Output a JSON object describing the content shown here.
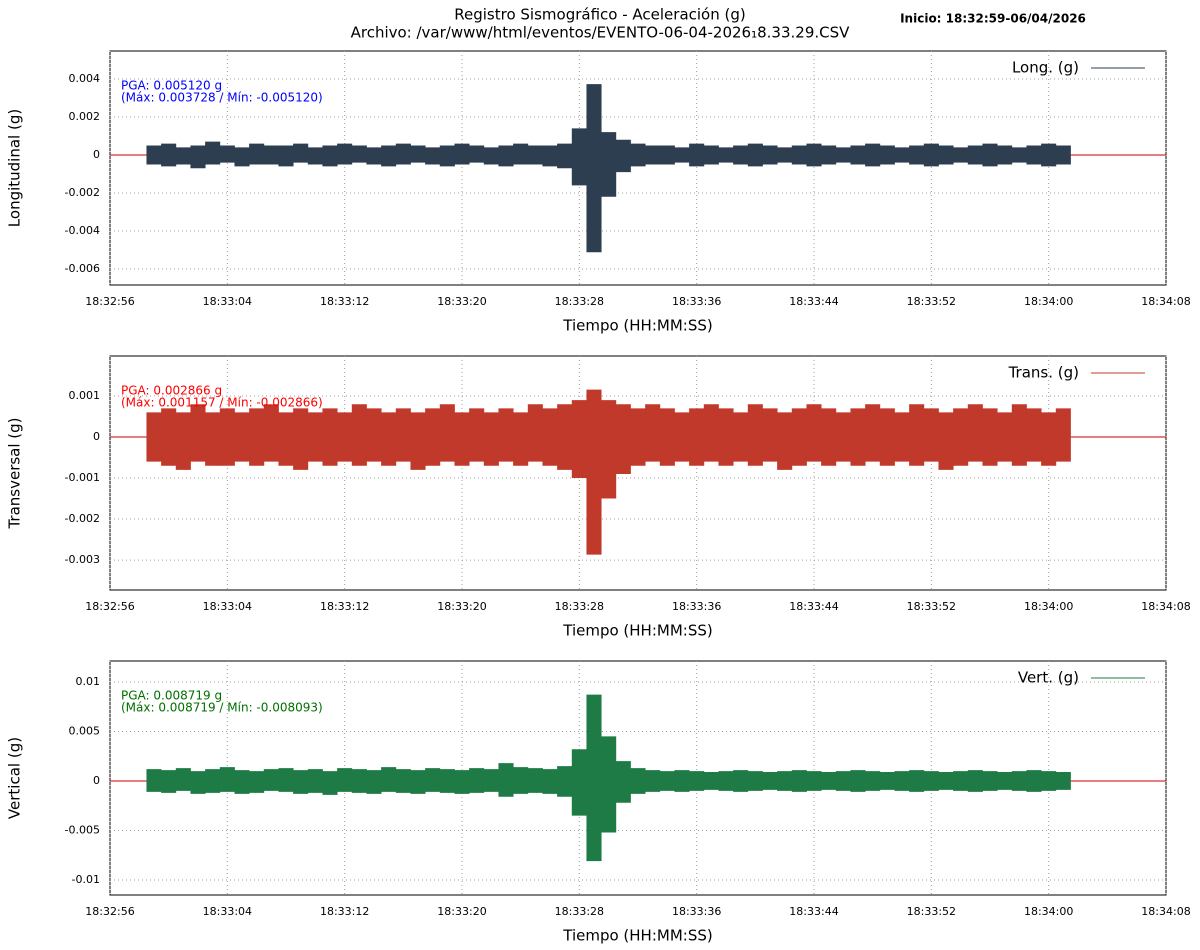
{
  "header": {
    "title": "Registro Sismográfico - Aceleración (g)",
    "subtitle": "Archivo: /var/www/html/eventos/EVENTO-06-04-2026₁8.33.29.CSV",
    "start": "Inicio: 18:32:59-06/04/2026"
  },
  "chart_data": [
    {
      "type": "envelope",
      "ylabel": "Longitudinal (g)",
      "xlabel": "Tiempo (HH:MM:SS)",
      "legend": "top-right",
      "grid": true,
      "annotations": [
        "PGA: 0.005120 g",
        "(Máx: 0.003728 / Mín: -0.005120)"
      ],
      "annotation_color": "#0000ff",
      "xlim": [
        "18:32:56",
        "18:34:08"
      ],
      "xticks": [
        "18:32:56",
        "18:33:04",
        "18:33:12",
        "18:33:20",
        "18:33:28",
        "18:33:36",
        "18:33:44",
        "18:33:52",
        "18:34:00",
        "18:34:08"
      ],
      "ylim": [
        -0.00684,
        0.00547
      ],
      "yticks": [
        -0.006,
        -0.004,
        -0.002,
        0,
        0.002,
        0.004
      ],
      "x": [
        "18:32:59",
        "18:33:00",
        "18:33:01",
        "18:33:02",
        "18:33:03",
        "18:33:04",
        "18:33:05",
        "18:33:06",
        "18:33:07",
        "18:33:08",
        "18:33:09",
        "18:33:10",
        "18:33:11",
        "18:33:12",
        "18:33:13",
        "18:33:14",
        "18:33:15",
        "18:33:16",
        "18:33:17",
        "18:33:18",
        "18:33:19",
        "18:33:20",
        "18:33:21",
        "18:33:22",
        "18:33:23",
        "18:33:24",
        "18:33:25",
        "18:33:26",
        "18:33:27",
        "18:33:28",
        "18:33:29",
        "18:33:30",
        "18:33:31",
        "18:33:32",
        "18:33:33",
        "18:33:34",
        "18:33:35",
        "18:33:36",
        "18:33:37",
        "18:33:38",
        "18:33:39",
        "18:33:40",
        "18:33:41",
        "18:33:42",
        "18:33:43",
        "18:33:44",
        "18:33:45",
        "18:33:46",
        "18:33:47",
        "18:33:48",
        "18:33:49",
        "18:33:50",
        "18:33:51",
        "18:33:52",
        "18:33:53",
        "18:33:54",
        "18:33:55",
        "18:33:56",
        "18:33:57",
        "18:33:58",
        "18:33:59",
        "18:34:00",
        "18:34:01"
      ],
      "series": [
        {
          "name": "Long. (g)",
          "color": "#2c3e50",
          "values": [
            0.0005,
            0.0006,
            0.0004,
            0.0005,
            0.0007,
            0.0005,
            0.0004,
            0.0006,
            0.0005,
            0.0005,
            0.0006,
            0.0004,
            0.0005,
            0.0006,
            0.0005,
            0.0004,
            0.0005,
            0.0006,
            0.0005,
            0.0004,
            0.0005,
            0.0006,
            0.0005,
            0.0004,
            0.0005,
            0.0006,
            0.0005,
            0.0005,
            0.0006,
            0.0014,
            0.003728,
            0.0012,
            0.0008,
            0.0006,
            0.0005,
            0.0005,
            0.0004,
            0.0006,
            0.0005,
            0.0004,
            0.0005,
            0.0006,
            0.0005,
            0.0004,
            0.0005,
            0.0006,
            0.0005,
            0.0004,
            0.0005,
            0.0006,
            0.0005,
            0.0004,
            0.0005,
            0.0006,
            0.0005,
            0.0004,
            0.0005,
            0.0006,
            0.0005,
            0.0004,
            0.0005,
            0.0006,
            0.0005
          ],
          "lows": [
            -0.0005,
            -0.0006,
            -0.0005,
            -0.0007,
            -0.0005,
            -0.0004,
            -0.0006,
            -0.0005,
            -0.0005,
            -0.0006,
            -0.0004,
            -0.0005,
            -0.0006,
            -0.0005,
            -0.0004,
            -0.0005,
            -0.0006,
            -0.0005,
            -0.0004,
            -0.0005,
            -0.0006,
            -0.0005,
            -0.0004,
            -0.0005,
            -0.0006,
            -0.0005,
            -0.0005,
            -0.0006,
            -0.0007,
            -0.0016,
            -0.00512,
            -0.0022,
            -0.0009,
            -0.0006,
            -0.0005,
            -0.0005,
            -0.0004,
            -0.0006,
            -0.0005,
            -0.0004,
            -0.0005,
            -0.0006,
            -0.0005,
            -0.0004,
            -0.0005,
            -0.0006,
            -0.0005,
            -0.0004,
            -0.0005,
            -0.0006,
            -0.0005,
            -0.0004,
            -0.0005,
            -0.0006,
            -0.0005,
            -0.0004,
            -0.0005,
            -0.0006,
            -0.0005,
            -0.0004,
            -0.0005,
            -0.0006,
            -0.0005
          ]
        }
      ]
    },
    {
      "type": "envelope",
      "ylabel": "Transversal (g)",
      "xlabel": "Tiempo (HH:MM:SS)",
      "legend": "top-right",
      "grid": true,
      "annotations": [
        "PGA: 0.002866 g",
        "(Máx: 0.001157 / Mín: -0.002866)"
      ],
      "annotation_color": "#ff0000",
      "xlim": [
        "18:32:56",
        "18:34:08"
      ],
      "xticks": [
        "18:32:56",
        "18:33:04",
        "18:33:12",
        "18:33:20",
        "18:33:28",
        "18:33:36",
        "18:33:44",
        "18:33:52",
        "18:34:00",
        "18:34:08"
      ],
      "ylim": [
        -0.00373,
        0.001976
      ],
      "yticks": [
        -0.003,
        -0.002,
        -0.001,
        0,
        0.001
      ],
      "x": [
        "18:32:59",
        "18:33:00",
        "18:33:01",
        "18:33:02",
        "18:33:03",
        "18:33:04",
        "18:33:05",
        "18:33:06",
        "18:33:07",
        "18:33:08",
        "18:33:09",
        "18:33:10",
        "18:33:11",
        "18:33:12",
        "18:33:13",
        "18:33:14",
        "18:33:15",
        "18:33:16",
        "18:33:17",
        "18:33:18",
        "18:33:19",
        "18:33:20",
        "18:33:21",
        "18:33:22",
        "18:33:23",
        "18:33:24",
        "18:33:25",
        "18:33:26",
        "18:33:27",
        "18:33:28",
        "18:33:29",
        "18:33:30",
        "18:33:31",
        "18:33:32",
        "18:33:33",
        "18:33:34",
        "18:33:35",
        "18:33:36",
        "18:33:37",
        "18:33:38",
        "18:33:39",
        "18:33:40",
        "18:33:41",
        "18:33:42",
        "18:33:43",
        "18:33:44",
        "18:33:45",
        "18:33:46",
        "18:33:47",
        "18:33:48",
        "18:33:49",
        "18:33:50",
        "18:33:51",
        "18:33:52",
        "18:33:53",
        "18:33:54",
        "18:33:55",
        "18:33:56",
        "18:33:57",
        "18:33:58",
        "18:33:59",
        "18:34:00",
        "18:34:01"
      ],
      "series": [
        {
          "name": "Trans. (g)",
          "color": "#c0392b",
          "values": [
            0.0006,
            0.0007,
            0.0006,
            0.0008,
            0.0006,
            0.0007,
            0.0006,
            0.0007,
            0.0008,
            0.0006,
            0.0007,
            0.0006,
            0.0007,
            0.0006,
            0.0008,
            0.0007,
            0.0006,
            0.0007,
            0.0006,
            0.0007,
            0.0008,
            0.0006,
            0.0007,
            0.0006,
            0.0007,
            0.0006,
            0.0008,
            0.0007,
            0.0008,
            0.0009,
            0.001157,
            0.0009,
            0.0008,
            0.0007,
            0.0008,
            0.0007,
            0.0006,
            0.0007,
            0.0008,
            0.0007,
            0.0006,
            0.0008,
            0.0007,
            0.0006,
            0.0007,
            0.0008,
            0.0007,
            0.0006,
            0.0007,
            0.0008,
            0.0007,
            0.0006,
            0.0008,
            0.0007,
            0.0006,
            0.0007,
            0.0008,
            0.0007,
            0.0006,
            0.0008,
            0.0007,
            0.0006,
            0.0007
          ],
          "lows": [
            -0.0006,
            -0.0007,
            -0.0008,
            -0.0006,
            -0.0007,
            -0.0007,
            -0.0006,
            -0.0007,
            -0.0006,
            -0.0007,
            -0.0008,
            -0.0006,
            -0.0007,
            -0.0006,
            -0.0007,
            -0.0006,
            -0.0007,
            -0.0006,
            -0.0008,
            -0.0007,
            -0.0006,
            -0.0007,
            -0.0006,
            -0.0007,
            -0.0006,
            -0.0007,
            -0.0006,
            -0.0007,
            -0.0008,
            -0.001,
            -0.002866,
            -0.0015,
            -0.0009,
            -0.0007,
            -0.0006,
            -0.0007,
            -0.0006,
            -0.0007,
            -0.0006,
            -0.0007,
            -0.0006,
            -0.0007,
            -0.0006,
            -0.0008,
            -0.0007,
            -0.0006,
            -0.0007,
            -0.0006,
            -0.0007,
            -0.0006,
            -0.0007,
            -0.0006,
            -0.0007,
            -0.0006,
            -0.0008,
            -0.0007,
            -0.0006,
            -0.0007,
            -0.0006,
            -0.0007,
            -0.0006,
            -0.0007,
            -0.0006
          ]
        }
      ]
    },
    {
      "type": "envelope",
      "ylabel": "Vertical (g)",
      "xlabel": "Tiempo (HH:MM:SS)",
      "legend": "top-right",
      "grid": true,
      "annotations": [
        "PGA: 0.008719 g",
        "(Máx: 0.008719 / Mín: -0.008093)"
      ],
      "annotation_color": "#007000",
      "xlim": [
        "18:32:56",
        "18:34:08"
      ],
      "xticks": [
        "18:32:56",
        "18:33:04",
        "18:33:12",
        "18:33:20",
        "18:33:28",
        "18:33:36",
        "18:33:44",
        "18:33:52",
        "18:34:00",
        "18:34:08"
      ],
      "ylim": [
        -0.01152,
        0.01212
      ],
      "yticks": [
        -0.01,
        -0.005,
        0,
        0.005,
        0.01
      ],
      "x": [
        "18:32:59",
        "18:33:00",
        "18:33:01",
        "18:33:02",
        "18:33:03",
        "18:33:04",
        "18:33:05",
        "18:33:06",
        "18:33:07",
        "18:33:08",
        "18:33:09",
        "18:33:10",
        "18:33:11",
        "18:33:12",
        "18:33:13",
        "18:33:14",
        "18:33:15",
        "18:33:16",
        "18:33:17",
        "18:33:18",
        "18:33:19",
        "18:33:20",
        "18:33:21",
        "18:33:22",
        "18:33:23",
        "18:33:24",
        "18:33:25",
        "18:33:26",
        "18:33:27",
        "18:33:28",
        "18:33:29",
        "18:33:30",
        "18:33:31",
        "18:33:32",
        "18:33:33",
        "18:33:34",
        "18:33:35",
        "18:33:36",
        "18:33:37",
        "18:33:38",
        "18:33:39",
        "18:33:40",
        "18:33:41",
        "18:33:42",
        "18:33:43",
        "18:33:44",
        "18:33:45",
        "18:33:46",
        "18:33:47",
        "18:33:48",
        "18:33:49",
        "18:33:50",
        "18:33:51",
        "18:33:52",
        "18:33:53",
        "18:33:54",
        "18:33:55",
        "18:33:56",
        "18:33:57",
        "18:33:58",
        "18:33:59",
        "18:34:00",
        "18:34:01"
      ],
      "series": [
        {
          "name": "Vert. (g)",
          "color": "#1e7b45",
          "values": [
            0.0012,
            0.0011,
            0.0013,
            0.001,
            0.0012,
            0.0014,
            0.0011,
            0.001,
            0.0012,
            0.0013,
            0.0011,
            0.0012,
            0.001,
            0.0013,
            0.0012,
            0.0011,
            0.0014,
            0.0012,
            0.0011,
            0.0013,
            0.0012,
            0.0011,
            0.0013,
            0.0012,
            0.0018,
            0.0014,
            0.0013,
            0.0012,
            0.0015,
            0.0032,
            0.008719,
            0.0045,
            0.002,
            0.0013,
            0.0011,
            0.001,
            0.0011,
            0.001,
            0.0009,
            0.001,
            0.0011,
            0.001,
            0.0009,
            0.001,
            0.0011,
            0.001,
            0.0009,
            0.001,
            0.0011,
            0.001,
            0.0009,
            0.001,
            0.0011,
            0.001,
            0.0009,
            0.001,
            0.0011,
            0.001,
            0.0009,
            0.001,
            0.0011,
            0.001,
            0.0009
          ],
          "lows": [
            -0.0011,
            -0.0012,
            -0.001,
            -0.0013,
            -0.0012,
            -0.0011,
            -0.0013,
            -0.0012,
            -0.001,
            -0.0011,
            -0.0013,
            -0.0012,
            -0.0014,
            -0.0011,
            -0.0012,
            -0.0013,
            -0.0011,
            -0.0012,
            -0.0013,
            -0.0011,
            -0.0012,
            -0.0013,
            -0.0012,
            -0.0011,
            -0.0016,
            -0.0013,
            -0.0012,
            -0.0013,
            -0.0016,
            -0.0035,
            -0.008093,
            -0.0052,
            -0.0022,
            -0.0013,
            -0.0011,
            -0.001,
            -0.0011,
            -0.001,
            -0.0009,
            -0.001,
            -0.0011,
            -0.001,
            -0.0009,
            -0.001,
            -0.0011,
            -0.001,
            -0.0009,
            -0.001,
            -0.0011,
            -0.001,
            -0.0009,
            -0.001,
            -0.0011,
            -0.001,
            -0.0009,
            -0.001,
            -0.0011,
            -0.001,
            -0.0009,
            -0.001,
            -0.0011,
            -0.001,
            -0.0009
          ]
        }
      ]
    }
  ]
}
